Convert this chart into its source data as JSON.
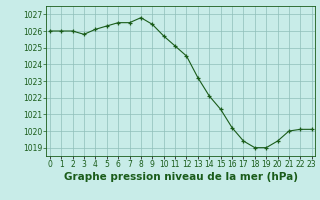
{
  "x": [
    0,
    1,
    2,
    3,
    4,
    5,
    6,
    7,
    8,
    9,
    10,
    11,
    12,
    13,
    14,
    15,
    16,
    17,
    18,
    19,
    20,
    21,
    22,
    23
  ],
  "y": [
    1026.0,
    1026.0,
    1026.0,
    1025.8,
    1026.1,
    1026.3,
    1026.5,
    1026.5,
    1026.8,
    1026.4,
    1025.7,
    1025.1,
    1024.5,
    1023.2,
    1022.1,
    1021.3,
    1020.2,
    1019.4,
    1019.0,
    1019.0,
    1019.4,
    1020.0,
    1020.1,
    1020.1
  ],
  "line_color": "#1a5c1a",
  "marker_color": "#1a5c1a",
  "bg_color": "#c8ece8",
  "grid_color": "#8fbfba",
  "text_color": "#1a5c1a",
  "xlabel": "Graphe pression niveau de la mer (hPa)",
  "ylim": [
    1018.5,
    1027.5
  ],
  "yticks": [
    1019,
    1020,
    1021,
    1022,
    1023,
    1024,
    1025,
    1026,
    1027
  ],
  "xticks": [
    0,
    1,
    2,
    3,
    4,
    5,
    6,
    7,
    8,
    9,
    10,
    11,
    12,
    13,
    14,
    15,
    16,
    17,
    18,
    19,
    20,
    21,
    22,
    23
  ],
  "tick_fontsize": 5.5,
  "xlabel_fontsize": 7.5,
  "xlim": [
    -0.3,
    23.3
  ]
}
